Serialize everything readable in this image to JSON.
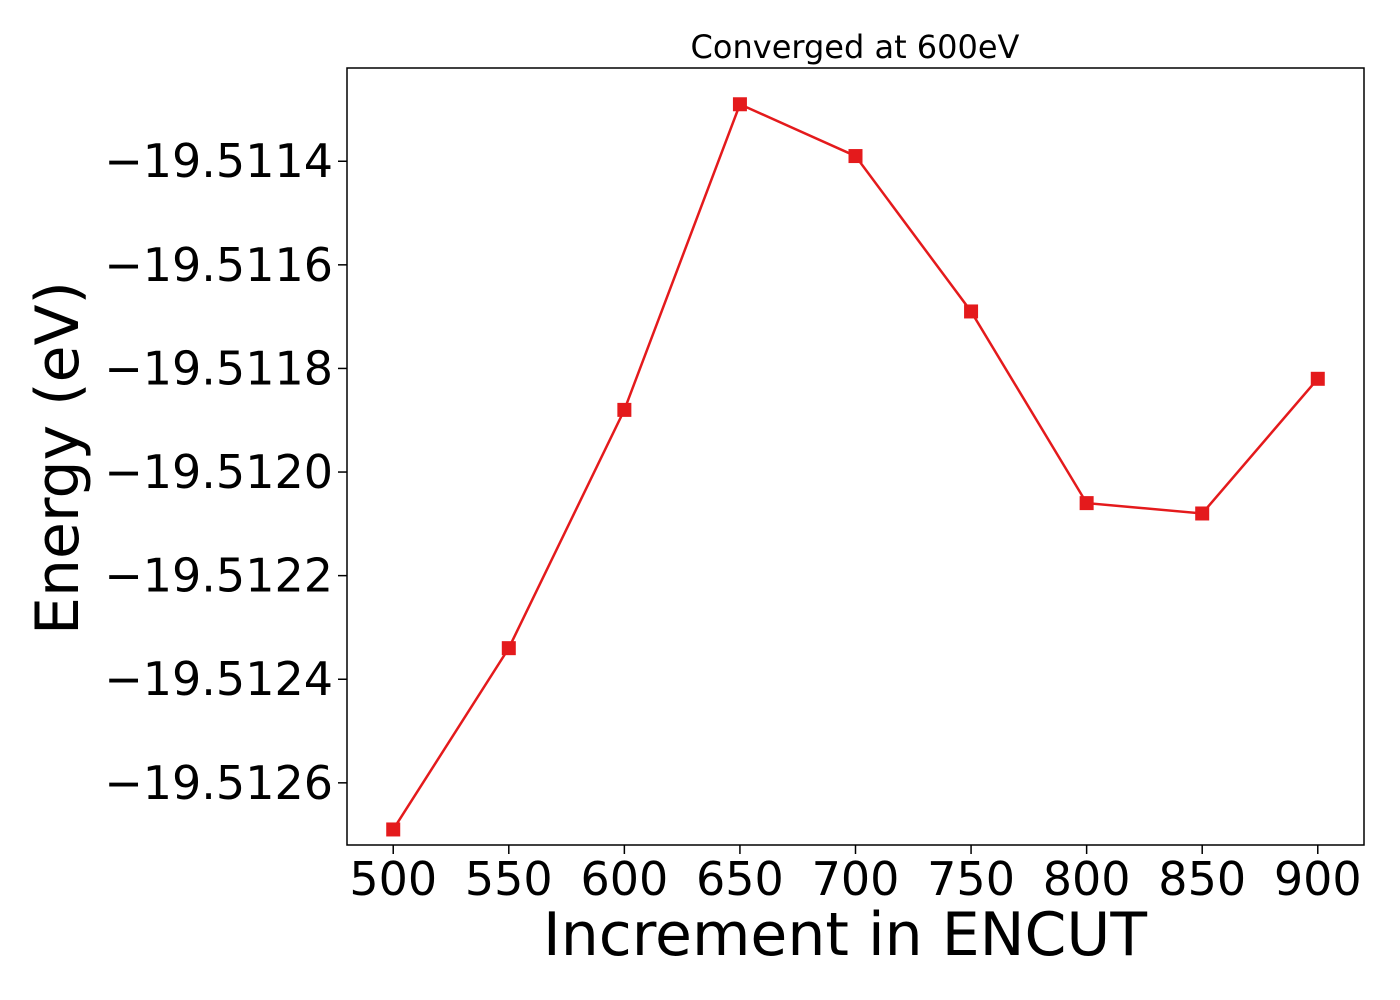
{
  "chart_data": {
    "type": "line",
    "title": "Converged at 600eV",
    "xlabel": "Increment in ENCUT",
    "ylabel": "Energy (eV)",
    "x": [
      500,
      550,
      600,
      650,
      700,
      750,
      800,
      850,
      900
    ],
    "series": [
      {
        "values": [
          -19.51269,
          -19.51234,
          -19.51188,
          -19.51129,
          -19.51139,
          -19.51169,
          -19.51206,
          -19.51208,
          -19.51182
        ],
        "color": "#e41a1c",
        "marker": "square"
      }
    ],
    "xticks": [
      500,
      550,
      600,
      650,
      700,
      750,
      800,
      850,
      900
    ],
    "xtick_labels": [
      "500",
      "550",
      "600",
      "650",
      "700",
      "750",
      "800",
      "850",
      "900"
    ],
    "yticks": [
      -19.5126,
      -19.5124,
      -19.5122,
      -19.512,
      -19.5118,
      -19.5116,
      -19.5114
    ],
    "ytick_labels": [
      "−19.5126",
      "−19.5124",
      "−19.5122",
      "−19.5120",
      "−19.5118",
      "−19.5116",
      "−19.5114"
    ],
    "xlim": [
      480,
      920
    ],
    "ylim": [
      -19.51272,
      -19.51122
    ],
    "grid": false,
    "legend": "none"
  }
}
